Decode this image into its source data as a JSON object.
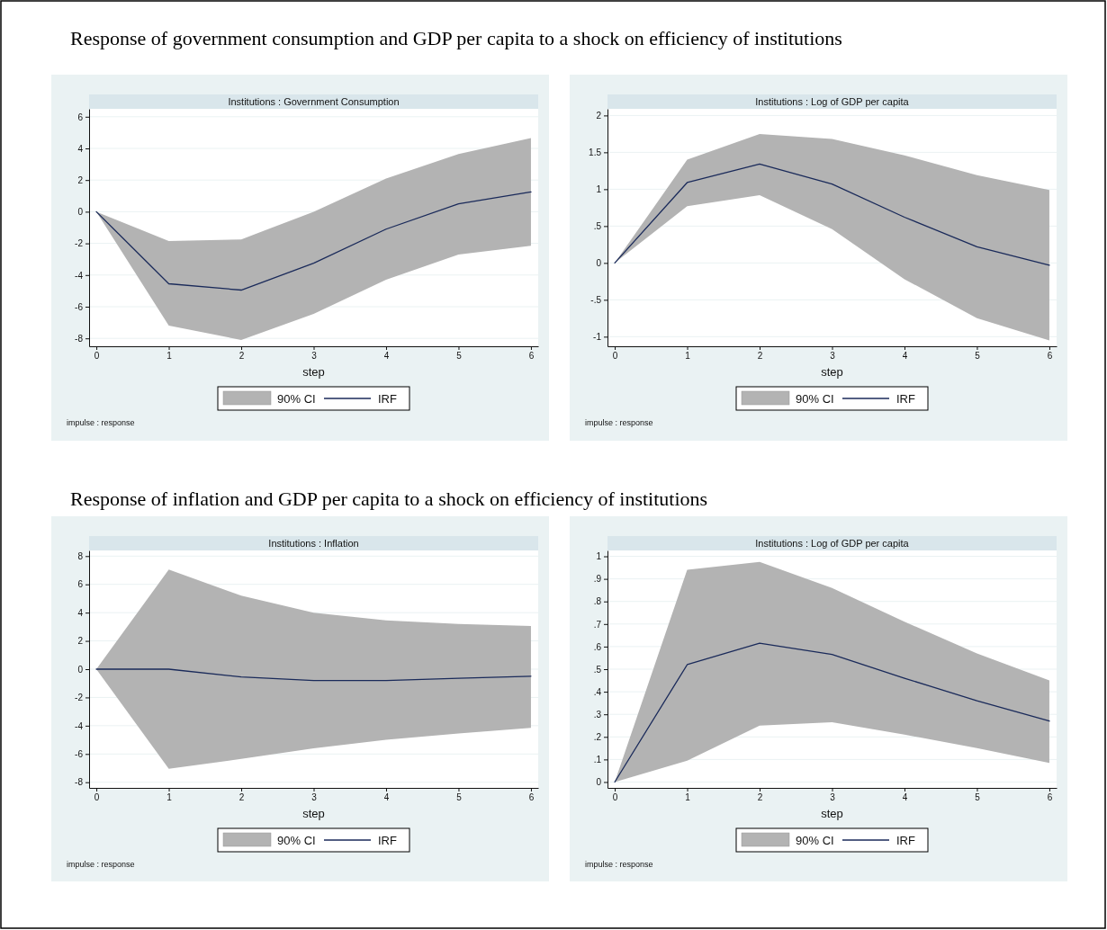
{
  "chart_data": [
    {
      "type": "line",
      "title": "Response of government consumption and GDP per capita to a shock on efficiency of institutions",
      "subtitle": "Institutions : Government Consumption",
      "xlabel": "step",
      "annotations": [
        "impulse : response"
      ],
      "x": [
        0,
        1,
        2,
        3,
        4,
        5,
        6
      ],
      "xlim": [
        -0.1,
        6.1
      ],
      "xticks": [
        0,
        1,
        2,
        3,
        4,
        5,
        6
      ],
      "ylim": [
        -8.5,
        6.5
      ],
      "yticks": [
        -8,
        -6,
        -4,
        -2,
        0,
        2,
        4,
        6
      ],
      "grid": "y",
      "legend": "bottom",
      "legend_title": "90% CI",
      "series": [
        {
          "name": "IRF",
          "color": "#1a2a5a",
          "values": [
            0,
            -4.55,
            -4.95,
            -3.25,
            -1.1,
            0.5,
            1.25
          ],
          "lower": [
            0,
            -7.2,
            -8.1,
            -6.45,
            -4.3,
            -2.7,
            -2.15
          ],
          "upper": [
            0,
            -1.85,
            -1.75,
            0,
            2.1,
            3.65,
            4.65
          ]
        }
      ]
    },
    {
      "type": "line",
      "subtitle": "Institutions : Log of GDP per capita",
      "xlabel": "step",
      "annotations": [
        "impulse : response"
      ],
      "x": [
        0,
        1,
        2,
        3,
        4,
        5,
        6
      ],
      "xlim": [
        -0.1,
        6.1
      ],
      "xticks": [
        0,
        1,
        2,
        3,
        4,
        5,
        6
      ],
      "ylim": [
        -1.13,
        2.09
      ],
      "yticks": [
        -1,
        {
          "value": -0.5,
          "label": "-.5"
        },
        0,
        {
          "value": 0.5,
          "label": ".5"
        },
        1,
        1.5,
        2
      ],
      "grid": "y",
      "legend": "bottom",
      "legend_title": "90% CI",
      "series": [
        {
          "name": "IRF",
          "color": "#1a2a5a",
          "values": [
            0,
            1.09,
            1.34,
            1.07,
            0.62,
            0.22,
            -0.03
          ],
          "lower": [
            0,
            0.77,
            0.92,
            0.46,
            -0.22,
            -0.75,
            -1.05
          ],
          "upper": [
            0,
            1.4,
            1.75,
            1.68,
            1.46,
            1.19,
            0.99
          ]
        }
      ]
    },
    {
      "type": "line",
      "title": "Response of inflation and GDP per capita to a shock on efficiency of institutions",
      "subtitle": "Institutions : Inflation",
      "xlabel": "step",
      "annotations": [
        "impulse : response"
      ],
      "x": [
        0,
        1,
        2,
        3,
        4,
        5,
        6
      ],
      "xlim": [
        -0.1,
        6.1
      ],
      "xticks": [
        0,
        1,
        2,
        3,
        4,
        5,
        6
      ],
      "ylim": [
        -8.4,
        8.4
      ],
      "yticks": [
        -8,
        -6,
        -4,
        -2,
        0,
        2,
        4,
        6,
        8
      ],
      "grid": "y",
      "legend": "bottom",
      "legend_title": "90% CI",
      "series": [
        {
          "name": "IRF",
          "color": "#1a2a5a",
          "values": [
            0,
            0,
            -0.55,
            -0.8,
            -0.8,
            -0.65,
            -0.5
          ],
          "lower": [
            0,
            -7.05,
            -6.35,
            -5.6,
            -5.0,
            -4.55,
            -4.15
          ],
          "upper": [
            0,
            7.05,
            5.2,
            4.0,
            3.45,
            3.2,
            3.05
          ]
        }
      ]
    },
    {
      "type": "line",
      "subtitle": "Institutions : Log of GDP per capita",
      "xlabel": "step",
      "annotations": [
        "impulse : response"
      ],
      "x": [
        0,
        1,
        2,
        3,
        4,
        5,
        6
      ],
      "xlim": [
        -0.1,
        6.1
      ],
      "xticks": [
        0,
        1,
        2,
        3,
        4,
        5,
        6
      ],
      "ylim": [
        -0.026,
        1.026
      ],
      "yticks": [
        0,
        {
          "value": 0.1,
          "label": ".1"
        },
        {
          "value": 0.2,
          "label": ".2"
        },
        {
          "value": 0.3,
          "label": ".3"
        },
        {
          "value": 0.4,
          "label": ".4"
        },
        {
          "value": 0.5,
          "label": ".5"
        },
        {
          "value": 0.6,
          "label": ".6"
        },
        {
          "value": 0.7,
          "label": ".7"
        },
        {
          "value": 0.8,
          "label": ".8"
        },
        {
          "value": 0.9,
          "label": ".9"
        },
        1
      ],
      "grid": "y",
      "legend": "bottom",
      "legend_title": "90% CI",
      "series": [
        {
          "name": "IRF",
          "color": "#1a2a5a",
          "values": [
            0,
            0.52,
            0.615,
            0.565,
            0.46,
            0.36,
            0.27
          ],
          "lower": [
            0,
            0.095,
            0.25,
            0.265,
            0.21,
            0.15,
            0.085
          ],
          "upper": [
            0,
            0.94,
            0.975,
            0.86,
            0.71,
            0.57,
            0.45
          ]
        }
      ]
    }
  ]
}
